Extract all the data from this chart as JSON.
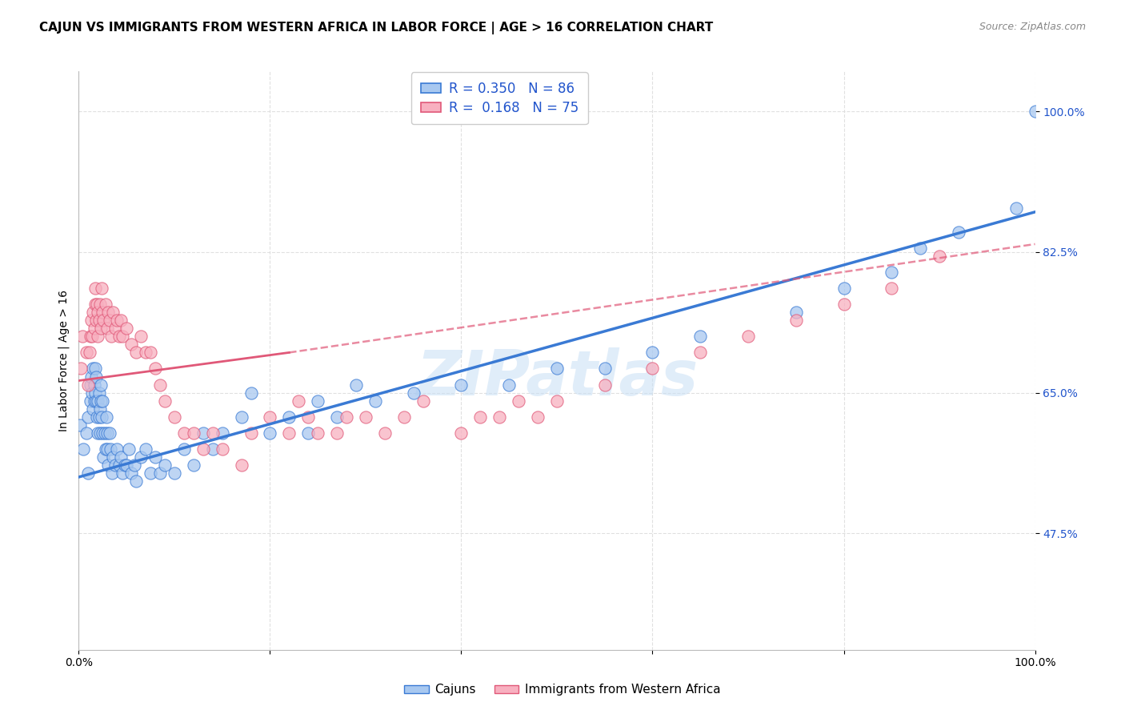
{
  "title": "CAJUN VS IMMIGRANTS FROM WESTERN AFRICA IN LABOR FORCE | AGE > 16 CORRELATION CHART",
  "source": "Source: ZipAtlas.com",
  "ylabel": "In Labor Force | Age > 16",
  "xlim": [
    0.0,
    1.0
  ],
  "ylim": [
    0.33,
    1.05
  ],
  "ytick_vals": [
    0.475,
    0.65,
    0.825,
    1.0
  ],
  "ytick_labels": [
    "47.5%",
    "65.0%",
    "82.5%",
    "100.0%"
  ],
  "xtick_vals": [
    0.0,
    0.2,
    0.4,
    0.6,
    0.8,
    1.0
  ],
  "xtick_labels": [
    "0.0%",
    "",
    "",
    "",
    "",
    "100.0%"
  ],
  "watermark": "ZIPatlas",
  "cajun_color": "#a8c8f0",
  "cajun_edge_color": "#3a7ad4",
  "immigrant_color": "#f8b0c0",
  "immigrant_edge_color": "#e05878",
  "r_cajun": 0.35,
  "n_cajun": 86,
  "r_immigrant": 0.168,
  "n_immigrant": 75,
  "cajun_x": [
    0.001,
    0.005,
    0.008,
    0.01,
    0.01,
    0.012,
    0.012,
    0.013,
    0.014,
    0.015,
    0.015,
    0.016,
    0.016,
    0.017,
    0.017,
    0.018,
    0.018,
    0.019,
    0.02,
    0.02,
    0.021,
    0.021,
    0.022,
    0.022,
    0.023,
    0.023,
    0.024,
    0.025,
    0.025,
    0.026,
    0.027,
    0.028,
    0.029,
    0.03,
    0.03,
    0.031,
    0.032,
    0.033,
    0.035,
    0.036,
    0.038,
    0.04,
    0.042,
    0.044,
    0.046,
    0.048,
    0.05,
    0.052,
    0.055,
    0.058,
    0.06,
    0.065,
    0.07,
    0.075,
    0.08,
    0.085,
    0.09,
    0.1,
    0.11,
    0.12,
    0.13,
    0.14,
    0.15,
    0.17,
    0.18,
    0.2,
    0.22,
    0.24,
    0.25,
    0.27,
    0.29,
    0.31,
    0.35,
    0.4,
    0.45,
    0.5,
    0.55,
    0.6,
    0.65,
    0.75,
    0.8,
    0.85,
    0.88,
    0.92,
    0.98,
    1.0
  ],
  "cajun_y": [
    0.61,
    0.58,
    0.6,
    0.55,
    0.62,
    0.66,
    0.64,
    0.67,
    0.65,
    0.63,
    0.68,
    0.64,
    0.66,
    0.68,
    0.65,
    0.67,
    0.64,
    0.62,
    0.6,
    0.64,
    0.62,
    0.65,
    0.63,
    0.6,
    0.66,
    0.64,
    0.62,
    0.64,
    0.6,
    0.57,
    0.6,
    0.58,
    0.62,
    0.6,
    0.58,
    0.56,
    0.6,
    0.58,
    0.55,
    0.57,
    0.56,
    0.58,
    0.56,
    0.57,
    0.55,
    0.56,
    0.56,
    0.58,
    0.55,
    0.56,
    0.54,
    0.57,
    0.58,
    0.55,
    0.57,
    0.55,
    0.56,
    0.55,
    0.58,
    0.56,
    0.6,
    0.58,
    0.6,
    0.62,
    0.65,
    0.6,
    0.62,
    0.6,
    0.64,
    0.62,
    0.66,
    0.64,
    0.65,
    0.66,
    0.66,
    0.68,
    0.68,
    0.7,
    0.72,
    0.75,
    0.78,
    0.8,
    0.83,
    0.85,
    0.88,
    1.0
  ],
  "immigrant_x": [
    0.002,
    0.004,
    0.008,
    0.01,
    0.011,
    0.012,
    0.013,
    0.014,
    0.015,
    0.016,
    0.017,
    0.017,
    0.018,
    0.019,
    0.02,
    0.02,
    0.021,
    0.022,
    0.023,
    0.024,
    0.025,
    0.026,
    0.028,
    0.03,
    0.031,
    0.032,
    0.034,
    0.036,
    0.038,
    0.04,
    0.042,
    0.044,
    0.046,
    0.05,
    0.055,
    0.06,
    0.065,
    0.07,
    0.075,
    0.08,
    0.085,
    0.09,
    0.1,
    0.11,
    0.12,
    0.13,
    0.14,
    0.15,
    0.17,
    0.18,
    0.2,
    0.22,
    0.23,
    0.24,
    0.25,
    0.27,
    0.28,
    0.3,
    0.32,
    0.34,
    0.36,
    0.4,
    0.42,
    0.44,
    0.46,
    0.48,
    0.5,
    0.55,
    0.6,
    0.65,
    0.7,
    0.75,
    0.8,
    0.85,
    0.9
  ],
  "immigrant_y": [
    0.68,
    0.72,
    0.7,
    0.66,
    0.7,
    0.72,
    0.74,
    0.72,
    0.75,
    0.73,
    0.76,
    0.78,
    0.74,
    0.76,
    0.72,
    0.75,
    0.74,
    0.76,
    0.73,
    0.78,
    0.75,
    0.74,
    0.76,
    0.73,
    0.75,
    0.74,
    0.72,
    0.75,
    0.73,
    0.74,
    0.72,
    0.74,
    0.72,
    0.73,
    0.71,
    0.7,
    0.72,
    0.7,
    0.7,
    0.68,
    0.66,
    0.64,
    0.62,
    0.6,
    0.6,
    0.58,
    0.6,
    0.58,
    0.56,
    0.6,
    0.62,
    0.6,
    0.64,
    0.62,
    0.6,
    0.6,
    0.62,
    0.62,
    0.6,
    0.62,
    0.64,
    0.6,
    0.62,
    0.62,
    0.64,
    0.62,
    0.64,
    0.66,
    0.68,
    0.7,
    0.72,
    0.74,
    0.76,
    0.78,
    0.82
  ],
  "cajun_trend": [
    0.0,
    1.0,
    0.545,
    0.875
  ],
  "immigrant_trend_solid": [
    0.0,
    0.22,
    0.665,
    0.7
  ],
  "immigrant_trend_dashed": [
    0.22,
    1.0,
    0.7,
    0.835
  ],
  "grid_color": "#dddddd",
  "bg_color": "#ffffff",
  "title_fontsize": 11,
  "label_fontsize": 10,
  "tick_fontsize": 10,
  "legend_fontsize": 12,
  "tick_color": "#2255cc"
}
